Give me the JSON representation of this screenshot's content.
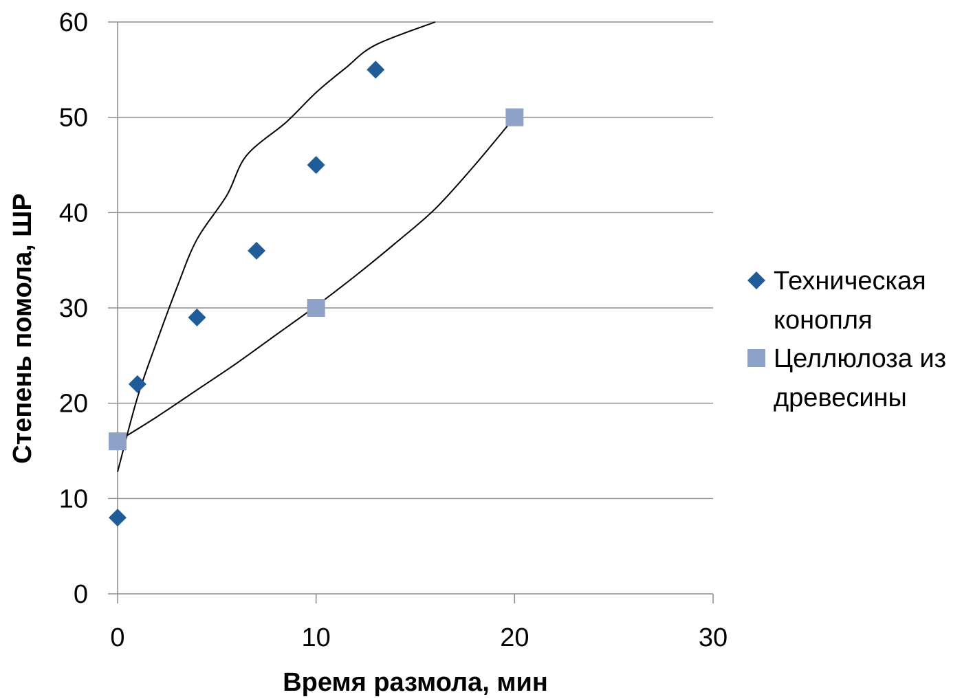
{
  "chart_data": {
    "type": "scatter",
    "title": "",
    "xlabel": "Время размола, мин",
    "ylabel": "Степень помола, ШР",
    "xlim": [
      0,
      30
    ],
    "ylim": [
      0,
      60
    ],
    "xticks": [
      "0",
      "10",
      "20",
      "30"
    ],
    "yticks": [
      "0",
      "10",
      "20",
      "30",
      "40",
      "50",
      "60"
    ],
    "grid": "horizontal",
    "legend_position": "right",
    "series": [
      {
        "name": "Техническая конопля",
        "marker": "diamond",
        "color": "#1f5c99",
        "x": [
          0,
          1,
          4,
          7,
          10,
          13
        ],
        "y": [
          8,
          22,
          29,
          36,
          45,
          55
        ],
        "trendline": {
          "type": "polynomial",
          "x_range": [
            0,
            16
          ],
          "y": [
            12.8,
            20.6,
            26.6,
            32.2,
            37.2,
            41.8,
            46.0,
            49.5,
            52.6,
            55.2,
            57.6,
            60.0
          ],
          "x": [
            0,
            1,
            2,
            3,
            4,
            5.5,
            6.5,
            8.5,
            10,
            11.5,
            13,
            16
          ]
        }
      },
      {
        "name": "Целлюлоза из древесины",
        "marker": "square",
        "color": "#8ea1c6",
        "x": [
          0,
          10,
          20
        ],
        "y": [
          16,
          30,
          50
        ],
        "trendline": {
          "type": "polynomial",
          "x_range": [
            0,
            20
          ],
          "x": [
            0,
            2,
            4,
            6,
            8,
            10,
            12,
            14,
            16,
            18,
            20
          ],
          "y": [
            16,
            18.6,
            21.4,
            24.2,
            27.2,
            30.2,
            33.4,
            36.8,
            40.4,
            45.0,
            50.0
          ]
        }
      }
    ]
  },
  "legend": {
    "items": [
      {
        "lines": [
          "Техническая",
          "конопля"
        ]
      },
      {
        "lines": [
          "Целлюлоза из",
          "древесины"
        ]
      }
    ]
  }
}
